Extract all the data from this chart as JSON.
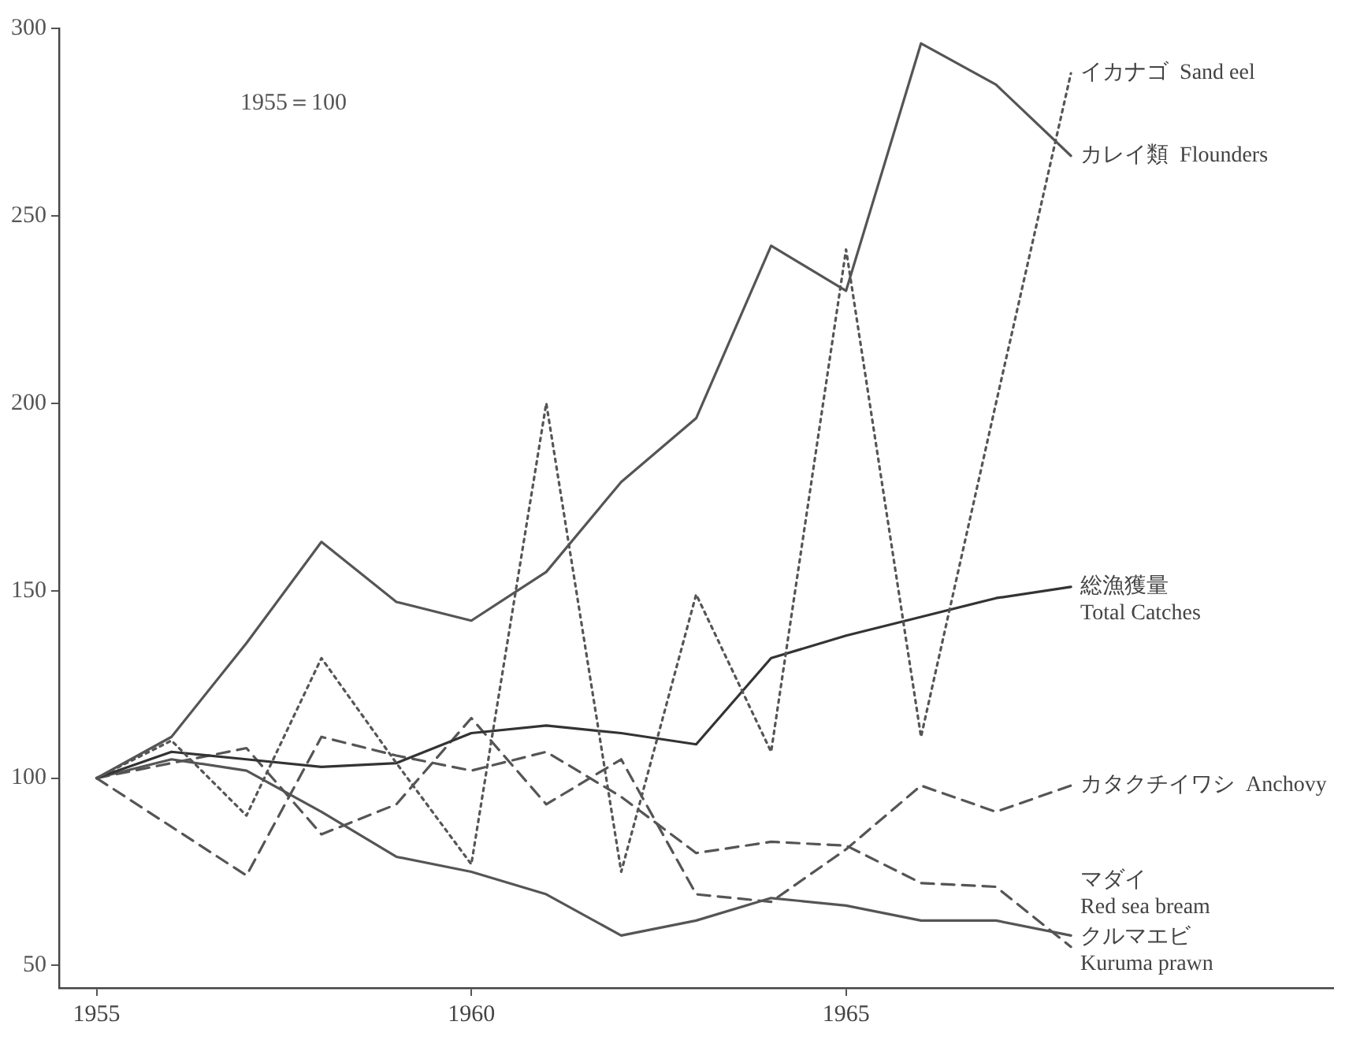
{
  "chart_data": {
    "type": "line",
    "x": [
      1955,
      1956,
      1957,
      1958,
      1959,
      1960,
      1961,
      1962,
      1963,
      1964,
      1965,
      1966,
      1967,
      1968
    ],
    "series": [
      {
        "name": "イカナゴ  Sand eel",
        "color": "#555555",
        "line_style": "dotted",
        "values": [
          100,
          110,
          90,
          132,
          104,
          77,
          200,
          75,
          149,
          107,
          241,
          111,
          200,
          288
        ]
      },
      {
        "name": "カレイ類  Flounders",
        "color": "#555555",
        "line_style": "solid",
        "values": [
          100,
          111,
          136,
          163,
          147,
          142,
          155,
          179,
          196,
          242,
          230,
          296,
          285,
          266
        ]
      },
      {
        "name": "総漁獲量\nTotal Catches",
        "color": "#333333",
        "line_style": "solid",
        "values": [
          100,
          107,
          105,
          103,
          104,
          112,
          114,
          112,
          109,
          132,
          138,
          143,
          148,
          151
        ]
      },
      {
        "name": "カタクチイワシ  Anchovy",
        "color": "#555555",
        "line_style": "dashed",
        "values": [
          100,
          104,
          108,
          85,
          93,
          116,
          93,
          105,
          69,
          67,
          81,
          98,
          91,
          98
        ]
      },
      {
        "name": "マダイ\nRed sea bream",
        "color": "#555555",
        "line_style": "solid",
        "values": [
          100,
          105,
          102,
          91,
          79,
          75,
          69,
          58,
          62,
          68,
          66,
          62,
          62,
          58
        ]
      },
      {
        "name": "クルマエビ\nKuruma prawn",
        "color": "#555555",
        "line_style": "dashed",
        "values": [
          100,
          87,
          74,
          111,
          106,
          102,
          107,
          95,
          80,
          83,
          82,
          72,
          71,
          55
        ]
      }
    ],
    "annotations": [
      "1955＝100"
    ],
    "xlim": [
      1954.5,
      1971.5
    ],
    "xticks": [
      1955,
      1960,
      1965
    ],
    "ylim": [
      44,
      300
    ],
    "yticks": [
      50,
      100,
      150,
      200,
      250,
      300
    ],
    "grid": false,
    "legend": false,
    "marker": "none"
  }
}
